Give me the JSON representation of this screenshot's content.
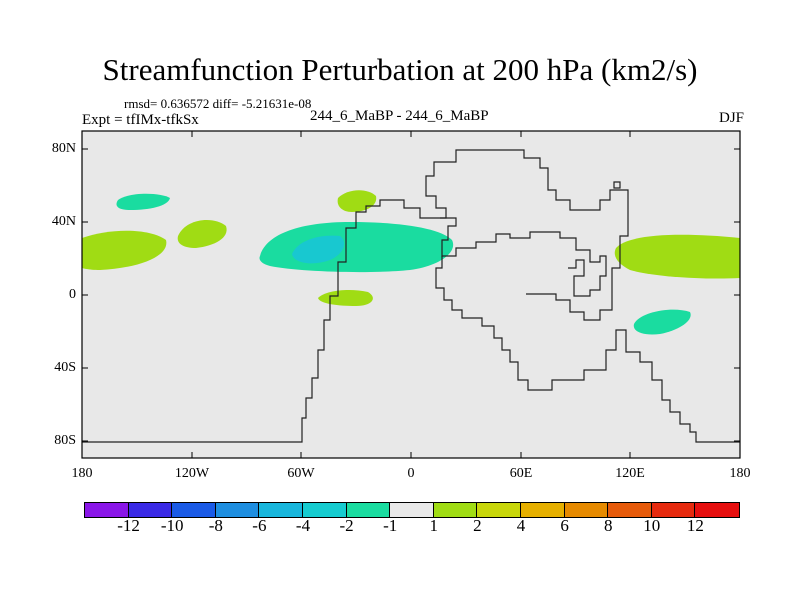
{
  "title": "Streamfunction Perturbation at 200 hPa (km2/s)",
  "stats_line": "rmsd= 0.636572 diff= -5.21631e-08",
  "experiment": "Expt = tfIMx-tfkSx",
  "case_label": "244_6_MaBP - 244_6_MaBP",
  "season": "DJF",
  "y_axis_labels": [
    "80N",
    "40N",
    "0",
    "40S",
    "80S"
  ],
  "x_axis_labels": [
    "180",
    "120W",
    "60W",
    "0",
    "60E",
    "120E",
    "180"
  ],
  "colorbar": {
    "labels": [
      "-12",
      "-10",
      "-8",
      "-6",
      "-4",
      "-2",
      "-1",
      "1",
      "2",
      "4",
      "6",
      "8",
      "10",
      "12"
    ],
    "colors": [
      "#8a16e8",
      "#3a2ae6",
      "#1a5ae6",
      "#1e8ee0",
      "#18b6dc",
      "#16ccd0",
      "#1adca0",
      "#e8e8e8",
      "#a0dc14",
      "#c8d60a",
      "#e6b000",
      "#e68a00",
      "#e65a0a",
      "#e62a0e",
      "#e60f0f"
    ]
  },
  "colors": {
    "background": "#e8e8e8",
    "positive_1_2": "#a0dc14",
    "negative_1_2": "#1adca0",
    "negative_2_4": "#18c8d0"
  }
}
